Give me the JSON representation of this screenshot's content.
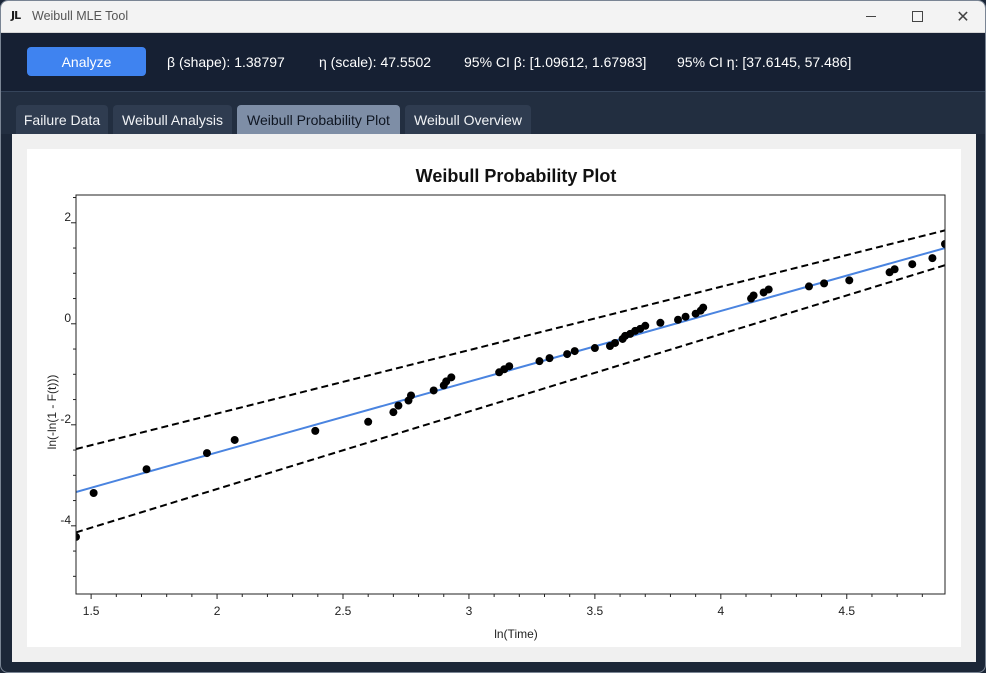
{
  "window": {
    "title": "Weibull MLE Tool",
    "icon": "jl-logo-icon"
  },
  "toolbar": {
    "analyze_label": "Analyze",
    "beta_text": "β (shape): 1.38797",
    "eta_text": "η (scale): 47.5502",
    "ci_beta_text": "95% CI β: [1.09612, 1.67983]",
    "ci_eta_text": "95% CI η: [37.6145, 57.486]"
  },
  "tabs": [
    {
      "label": "Failure Data",
      "active": false
    },
    {
      "label": "Weibull Analysis",
      "active": false
    },
    {
      "label": "Weibull Probability Plot",
      "active": true
    },
    {
      "label": "Weibull Overview",
      "active": false
    }
  ],
  "colors": {
    "accent": "#3f83f0",
    "fit_line": "#4a84e0",
    "points": "#000000",
    "ci_lines": "#000000"
  },
  "chart_data": {
    "type": "scatter",
    "title": "Weibull Probability Plot",
    "xlabel": "ln(Time)",
    "ylabel": "ln(-ln(1 - F(t)))",
    "xlim": [
      1.44,
      4.89
    ],
    "ylim": [
      -5.35,
      2.55
    ],
    "xticks": [
      1.5,
      2,
      2.5,
      3,
      3.5,
      4,
      4.5
    ],
    "xtick_labels": [
      "1.5",
      "2",
      "2.5",
      "3",
      "3.5",
      "4",
      "4.5"
    ],
    "yticks": [
      2,
      0,
      -2,
      -4
    ],
    "ytick_labels": [
      "2",
      "0",
      "-2",
      "-4"
    ],
    "grid": false,
    "series": [
      {
        "kind": "points",
        "x": [
          1.44,
          1.51,
          1.72,
          1.96,
          2.07,
          2.39,
          2.6,
          2.7,
          2.72,
          2.76,
          2.77,
          2.86,
          2.9,
          2.91,
          2.93,
          3.12,
          3.14,
          3.16,
          3.28,
          3.32,
          3.39,
          3.42,
          3.5,
          3.56,
          3.58,
          3.61,
          3.62,
          3.64,
          3.66,
          3.68,
          3.7,
          3.76,
          3.83,
          3.86,
          3.9,
          3.92,
          3.93,
          4.12,
          4.13,
          4.17,
          4.19,
          4.35,
          4.41,
          4.51,
          4.67,
          4.69,
          4.76,
          4.84,
          4.89
        ],
        "y": [
          -4.22,
          -3.35,
          -2.88,
          -2.56,
          -2.3,
          -2.12,
          -1.94,
          -1.75,
          -1.62,
          -1.52,
          -1.42,
          -1.32,
          -1.22,
          -1.14,
          -1.06,
          -0.96,
          -0.9,
          -0.84,
          -0.74,
          -0.68,
          -0.6,
          -0.54,
          -0.48,
          -0.44,
          -0.38,
          -0.3,
          -0.24,
          -0.2,
          -0.14,
          -0.1,
          -0.04,
          0.02,
          0.08,
          0.14,
          0.2,
          0.26,
          0.32,
          0.5,
          0.56,
          0.62,
          0.68,
          0.74,
          0.8,
          0.86,
          1.02,
          1.08,
          1.18,
          1.3,
          1.58
        ]
      },
      {
        "kind": "fit-line",
        "x": [
          1.44,
          4.89
        ],
        "y": [
          -3.33,
          1.5
        ]
      },
      {
        "kind": "ci-upper",
        "x": [
          1.44,
          4.89
        ],
        "y": [
          -2.48,
          1.85
        ]
      },
      {
        "kind": "ci-lower",
        "x": [
          1.44,
          4.89
        ],
        "y": [
          -4.13,
          1.16
        ]
      }
    ]
  }
}
